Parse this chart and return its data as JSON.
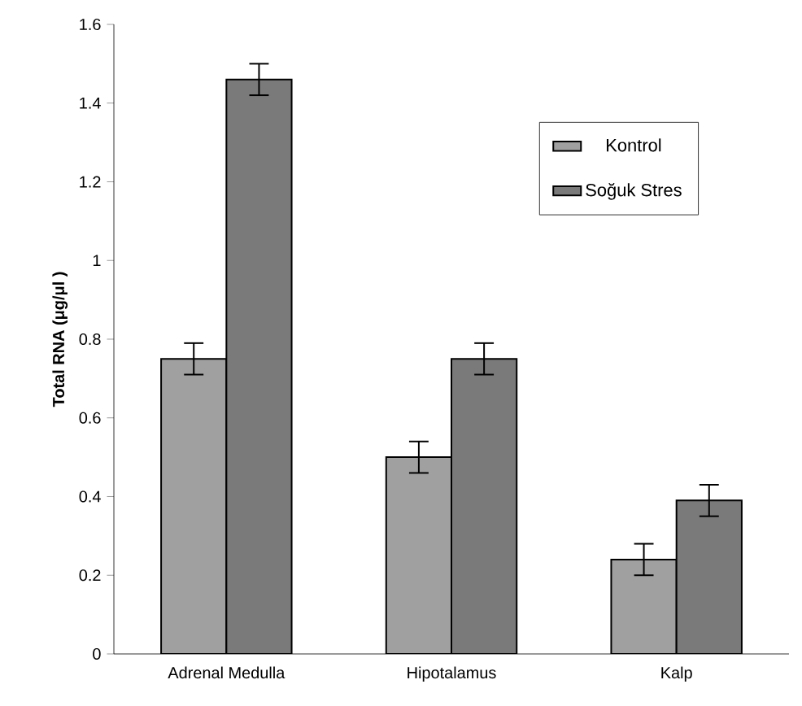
{
  "chart_data": {
    "type": "bar",
    "ylabel": "Total RNA (μg/μl )",
    "categories": [
      "Adrenal Medulla",
      "Hipotalamus",
      "Kalp"
    ],
    "series": [
      {
        "name": "Kontrol",
        "color": "#a0a0a0",
        "values": [
          0.75,
          0.5,
          0.24
        ],
        "errors": [
          0.04,
          0.04,
          0.04
        ]
      },
      {
        "name": "Soğuk Stres",
        "color": "#7a7a7a",
        "values": [
          1.46,
          0.75,
          0.39
        ],
        "errors": [
          0.04,
          0.04,
          0.04
        ]
      }
    ],
    "ylim": [
      0,
      1.6
    ],
    "yticks": [
      0,
      0.2,
      0.4,
      0.6,
      0.8,
      1,
      1.2,
      1.4,
      1.6
    ],
    "legend": "top right",
    "grid": false
  }
}
